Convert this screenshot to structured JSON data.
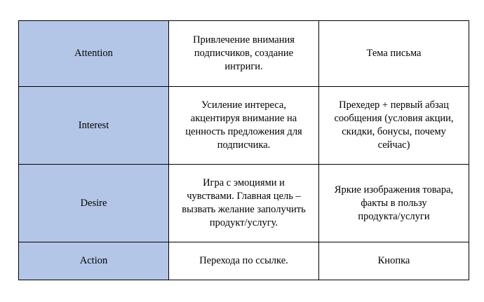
{
  "header_color": "#b4c6e7",
  "rows": [
    {
      "stage": "Attention",
      "goal": "Привлечение внимания\nподписчиков, создание\nинтриги.",
      "element": "Тема письма"
    },
    {
      "stage": "Interest",
      "goal": "Усиление интереса,\nакцентируя внимание на\nценность предложения для\nподписчика.",
      "element": "Прехедер + первый абзац\nсообщения (условия акции,\nскидки, бонусы, почему\nсейчас)"
    },
    {
      "stage": "Desire",
      "goal": "Игра с эмоциями и\nчувствами. Главная цель –\nвызвать желание заполучить\nпродукт/услугу.",
      "element": "Яркие изображения товара,\nфакты в пользу\nпродукта/услуги"
    },
    {
      "stage": "Action",
      "goal": "Перехода по ссылке.",
      "element": "Кнопка"
    }
  ]
}
